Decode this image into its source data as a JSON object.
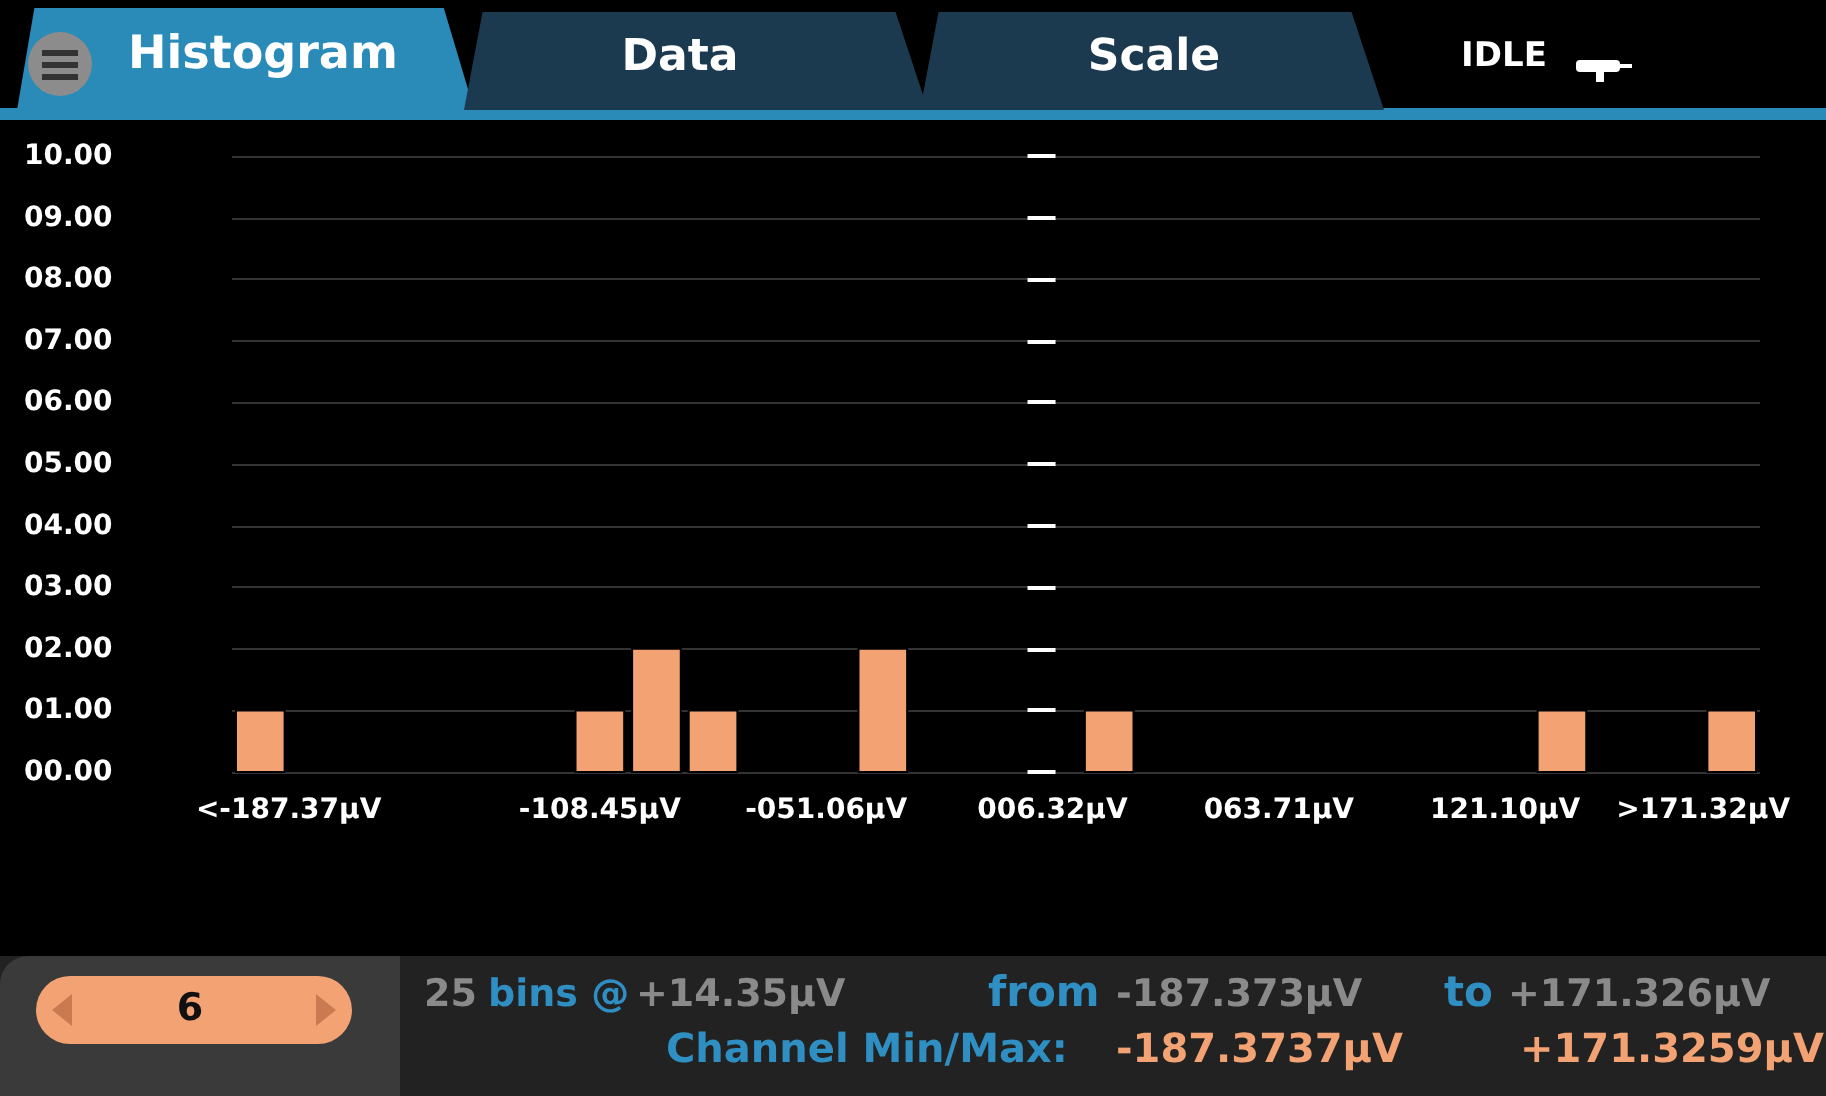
{
  "chart_data": {
    "type": "histogram",
    "title": "Histogram",
    "bins": [
      -201.72,
      -187.37,
      -173.02,
      -158.67,
      -144.32,
      -129.97,
      -115.62,
      -101.27,
      -86.92,
      -72.57,
      -58.22,
      -43.87,
      -29.52,
      -15.17,
      -0.82,
      13.53,
      27.88,
      42.23,
      56.58,
      70.93,
      85.28,
      99.63,
      113.98,
      128.33,
      142.68,
      157.03,
      171.38,
      185.73
    ],
    "values": [
      1,
      0,
      0,
      0,
      0,
      0,
      1,
      2,
      1,
      0,
      0,
      2,
      0,
      0,
      0,
      1,
      0,
      0,
      0,
      0,
      0,
      0,
      0,
      1,
      0,
      0,
      1
    ],
    "color": "#f2a273",
    "xlim": [
      -201.72,
      185.73
    ],
    "xticks": [
      {
        "value": -187.37,
        "label": "<-187.37µV"
      },
      {
        "value": -108.45,
        "label": "-108.45µV"
      },
      {
        "value": -51.06,
        "label": "-051.06µV"
      },
      {
        "value": 6.32,
        "label": "006.32µV"
      },
      {
        "value": 63.71,
        "label": "063.71µV"
      },
      {
        "value": 121.1,
        "label": "121.10µV"
      },
      {
        "value": 171.32,
        "label": ">171.32µV"
      }
    ],
    "ylim": [
      0,
      10
    ],
    "yticks": [
      {
        "value": 0,
        "label": "00.00"
      },
      {
        "value": 1,
        "label": "01.00"
      },
      {
        "value": 2,
        "label": "02.00"
      },
      {
        "value": 3,
        "label": "03.00"
      },
      {
        "value": 4,
        "label": "04.00"
      },
      {
        "value": 5,
        "label": "05.00"
      },
      {
        "value": 6,
        "label": "06.00"
      },
      {
        "value": 7,
        "label": "07.00"
      },
      {
        "value": 8,
        "label": "08.00"
      },
      {
        "value": 9,
        "label": "09.00"
      },
      {
        "value": 10,
        "label": "10.00"
      }
    ],
    "grid": "y",
    "annotations": [
      "Data",
      "Scale",
      "IDLE",
      "6",
      "25",
      "bins @",
      "+14.35µV",
      "from",
      "-187.373µV",
      "to",
      "+171.326µV",
      "Channel Min/Max:",
      "-187.3737µV",
      "+171.3259µV"
    ]
  }
}
